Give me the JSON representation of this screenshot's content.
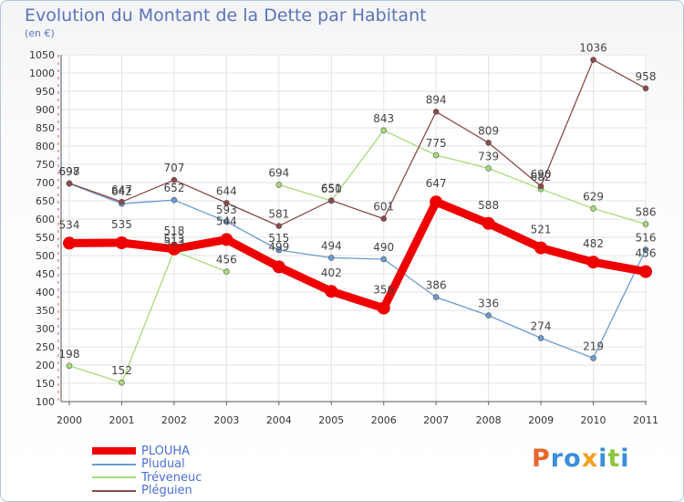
{
  "title": "Evolution du Montant de la Dette par Habitant",
  "subtitle": "(en €)",
  "brand": {
    "letters": [
      "P",
      "r",
      "o",
      "x",
      "i",
      "t",
      "i"
    ],
    "colors": [
      "#e8672d",
      "#3a8fd9",
      "#3a8fd9",
      "#f2a01e",
      "#3a8fd9",
      "#8cc63f",
      "#3a8fd9"
    ]
  },
  "chart_data": {
    "type": "line",
    "x": [
      "2000",
      "2001",
      "2002",
      "2003",
      "2004",
      "2005",
      "2006",
      "2007",
      "2008",
      "2009",
      "2010",
      "2011"
    ],
    "ylim": [
      100,
      1050
    ],
    "yticks": [
      100,
      150,
      200,
      250,
      300,
      350,
      400,
      450,
      500,
      550,
      600,
      650,
      700,
      750,
      800,
      850,
      900,
      950,
      1000,
      1050
    ],
    "grid": true,
    "legend_position": "bottom-left",
    "series": [
      {
        "name": "PLOUHA",
        "color": "#ee0000",
        "values": [
          534,
          535,
          518,
          544,
          469,
          402,
          356,
          647,
          588,
          521,
          482,
          456
        ],
        "labels": [
          "534",
          "535",
          "518",
          "544",
          "",
          "402",
          "356",
          "647",
          "588",
          "521",
          "482",
          "456"
        ]
      },
      {
        "name": "Pludual",
        "color": "#6a9bd0",
        "values": [
          697,
          642,
          652,
          593,
          515,
          494,
          490,
          386,
          336,
          274,
          219,
          516
        ],
        "labels": [
          "697",
          "642",
          "652",
          "593",
          "515",
          "494",
          "490",
          "386",
          "336",
          "274",
          "219",
          "516"
        ]
      },
      {
        "name": "Tréveneuc",
        "color": "#a6db7a",
        "values": [
          198,
          152,
          513,
          456,
          694,
          650,
          843,
          775,
          739,
          682,
          629,
          586
        ],
        "labels": [
          "198",
          "152",
          "513",
          "456",
          "694",
          "650",
          "843",
          "775",
          "739",
          "682",
          "629",
          "586"
        ]
      },
      {
        "name": "Pléguien",
        "color": "#8c4a4a",
        "values": [
          698,
          647,
          707,
          644,
          581,
          651,
          601,
          894,
          809,
          690,
          1036,
          958
        ],
        "labels": [
          "698",
          "647",
          "707",
          "644",
          "581",
          "651",
          "601",
          "894",
          "809",
          "690",
          "1036",
          "958"
        ]
      }
    ],
    "extra_labels": [
      "499",
      "513"
    ]
  }
}
